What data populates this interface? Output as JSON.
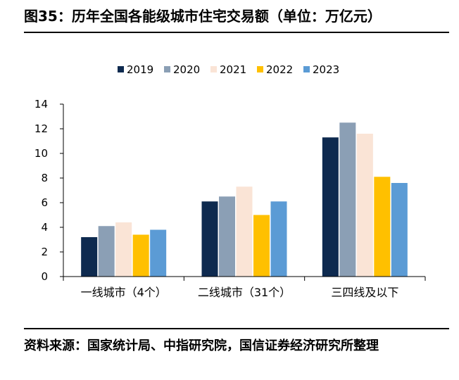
{
  "header": {
    "title": "图35：历年全国各能级城市住宅交易额（单位：万亿元）"
  },
  "footer": {
    "source": "资料来源：国家统计局、中指研究院，国信证券经济研究所整理"
  },
  "chart_data": {
    "type": "bar",
    "categories": [
      "一线城市（4个）",
      "二线城市（31个）",
      "三四线及以下"
    ],
    "series": [
      {
        "name": "2019",
        "color": "#0e2a4f",
        "values": [
          3.2,
          6.1,
          11.3
        ]
      },
      {
        "name": "2020",
        "color": "#8b9fb5",
        "values": [
          4.1,
          6.5,
          12.5
        ]
      },
      {
        "name": "2021",
        "color": "#fae4d6",
        "values": [
          4.4,
          7.3,
          11.6
        ]
      },
      {
        "name": "2022",
        "color": "#ffc000",
        "values": [
          3.4,
          5.0,
          8.1
        ]
      },
      {
        "name": "2023",
        "color": "#5b9bd5",
        "values": [
          3.8,
          6.1,
          7.6
        ]
      }
    ],
    "yticks": [
      0,
      2,
      4,
      6,
      8,
      10,
      12,
      14
    ],
    "ylim": [
      0,
      14
    ],
    "grid": false,
    "legend": "top-center"
  }
}
